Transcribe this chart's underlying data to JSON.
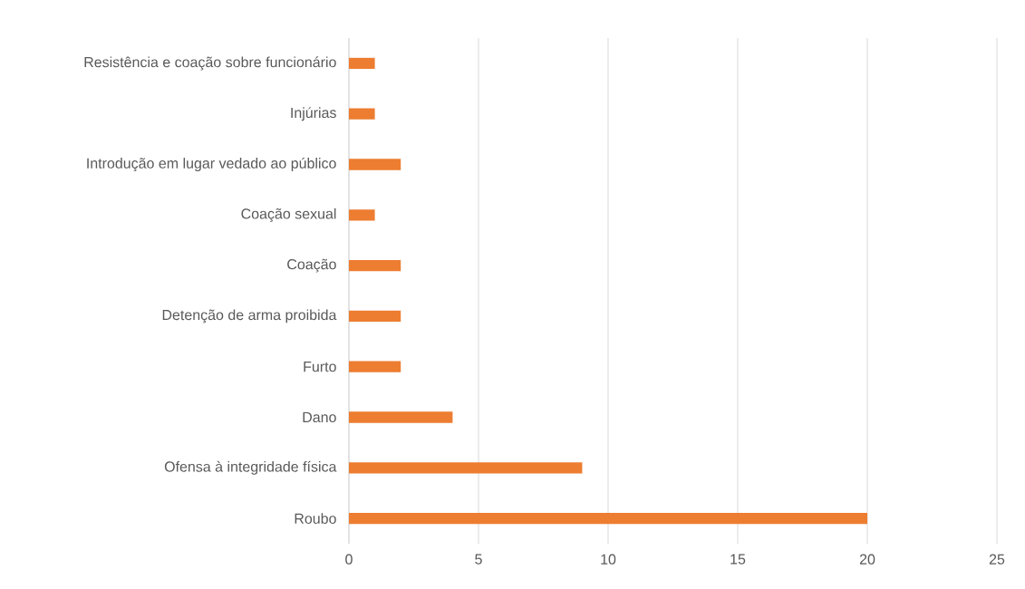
{
  "chart_data": {
    "type": "bar",
    "orientation": "horizontal",
    "categories": [
      "Resistência e coação sobre funcionário",
      "Injúrias",
      "Introdução em lugar vedado ao público",
      "Coação sexual",
      "Coação",
      "Detenção de arma proibida",
      "Furto",
      "Dano",
      "Ofensa à integridade física",
      "Roubo"
    ],
    "values": [
      1,
      1,
      2,
      1,
      2,
      2,
      2,
      4,
      9,
      20
    ],
    "color": "#ed7d31",
    "xlim": [
      0,
      25
    ],
    "xticks": [
      0,
      5,
      10,
      15,
      20,
      25
    ],
    "grid": "x"
  }
}
